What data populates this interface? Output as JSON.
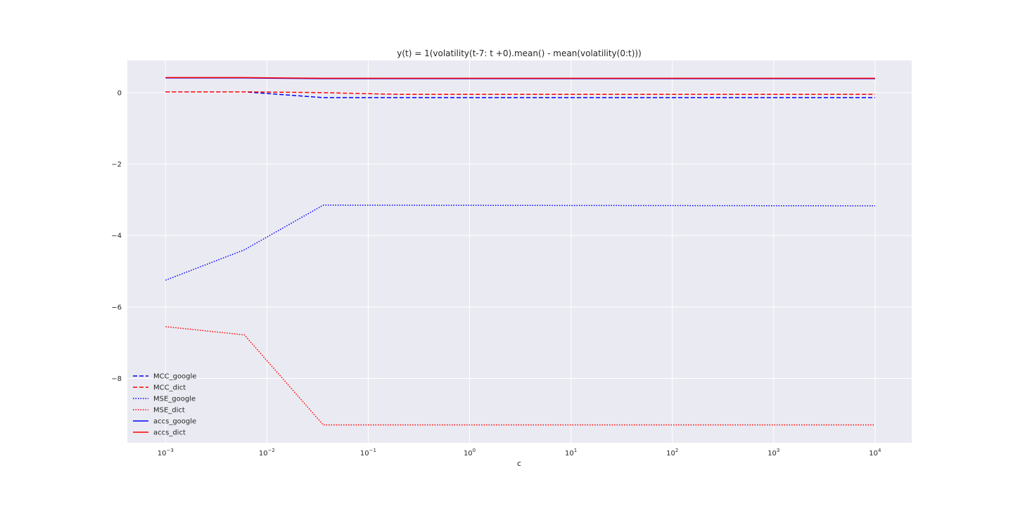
{
  "chart_data": {
    "type": "line",
    "title": "y(t) = 1(volatility(t-7: t +0).mean() -  mean(volatility(0:t)))",
    "xlabel": "c",
    "ylabel": "",
    "xscale": "log",
    "xlim": [
      0.00042,
      23000
    ],
    "ylim": [
      -9.8,
      0.9
    ],
    "x": [
      0.001,
      0.006,
      0.036,
      10000
    ],
    "xticks": [
      {
        "value": 0.001,
        "base": "10",
        "exp": "−3"
      },
      {
        "value": 0.01,
        "base": "10",
        "exp": "−2"
      },
      {
        "value": 0.1,
        "base": "10",
        "exp": "−1"
      },
      {
        "value": 1,
        "base": "10",
        "exp": "0"
      },
      {
        "value": 10,
        "base": "10",
        "exp": "1"
      },
      {
        "value": 100,
        "base": "10",
        "exp": "2"
      },
      {
        "value": 1000,
        "base": "10",
        "exp": "3"
      },
      {
        "value": 10000,
        "base": "10",
        "exp": "4"
      }
    ],
    "yticks": [
      {
        "value": 0,
        "label": "0"
      },
      {
        "value": -2,
        "label": "−2"
      },
      {
        "value": -4,
        "label": "−4"
      },
      {
        "value": -6,
        "label": "−6"
      },
      {
        "value": -8,
        "label": "−8"
      }
    ],
    "grid": true,
    "legend_position": "lower-left",
    "series": [
      {
        "name": "MCC_google",
        "color": "#0000ff",
        "style": "dashed",
        "x": [
          0.001,
          0.006,
          0.036,
          10000
        ],
        "values": [
          0.02,
          0.02,
          -0.14,
          -0.14
        ]
      },
      {
        "name": "MCC_dict",
        "color": "#ff0000",
        "style": "dashed",
        "x": [
          0.001,
          0.006,
          0.036,
          0.2,
          10000
        ],
        "values": [
          0.02,
          0.02,
          0.0,
          -0.05,
          -0.05
        ]
      },
      {
        "name": "MSE_google",
        "color": "#0000ff",
        "style": "dotted",
        "x": [
          0.001,
          0.006,
          0.036,
          10000
        ],
        "values": [
          -5.25,
          -4.4,
          -3.15,
          -3.17
        ]
      },
      {
        "name": "MSE_dict",
        "color": "#ff0000",
        "style": "dotted",
        "x": [
          0.001,
          0.006,
          0.036,
          10000
        ],
        "values": [
          -6.55,
          -6.78,
          -9.3,
          -9.3
        ]
      },
      {
        "name": "accs_google",
        "color": "#0000ff",
        "style": "solid",
        "x": [
          0.001,
          0.006,
          0.036,
          10000
        ],
        "values": [
          0.41,
          0.41,
          0.39,
          0.39
        ]
      },
      {
        "name": "accs_dict",
        "color": "#ff0000",
        "style": "solid",
        "x": [
          0.001,
          0.006,
          0.036,
          10000
        ],
        "values": [
          0.42,
          0.42,
          0.4,
          0.4
        ]
      }
    ],
    "colors": {
      "plot_bg": "#eaeaf2",
      "grid": "#ffffff",
      "text": "#262626"
    }
  }
}
